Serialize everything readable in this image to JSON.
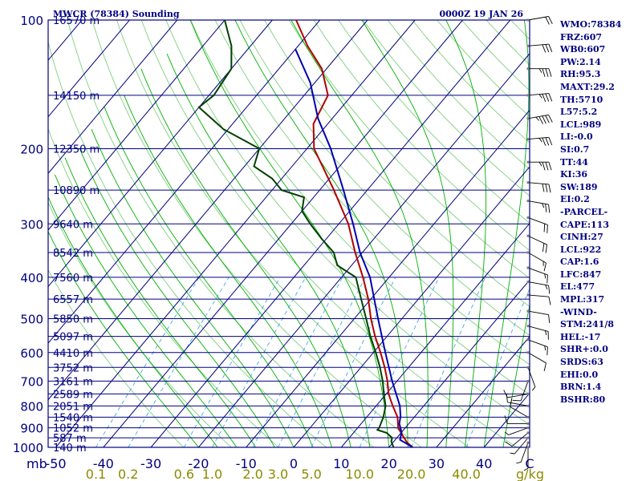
{
  "chart_data": {
    "type": "skew-t sounding",
    "title": "MWCR (78384) Sounding",
    "time_label": "0000Z 19 JAN 26",
    "pressure_axis_unit": "mb",
    "pressure_levels": [
      100,
      200,
      300,
      400,
      500,
      600,
      700,
      800,
      900,
      1000
    ],
    "temperature_ticks": [
      -50,
      -40,
      -30,
      -20,
      -10,
      0,
      10,
      20,
      30,
      40
    ],
    "temperature_extra_label": "C",
    "mixing_ratio_ticks": [
      "0.1",
      "0.2",
      "0.6",
      "1.0",
      "2.0",
      "3.0",
      "5.0",
      "10.0",
      "20.0",
      "40.0"
    ],
    "mixing_ratio_unit": "g/kg",
    "heights": [
      {
        "p": 100,
        "label": "16570 m"
      },
      {
        "p": 150,
        "label": "14150 m"
      },
      {
        "p": 200,
        "label": "12350 m"
      },
      {
        "p": 250,
        "label": "10890 m"
      },
      {
        "p": 300,
        "label": "9640 m"
      },
      {
        "p": 350,
        "label": "8542 m"
      },
      {
        "p": 400,
        "label": "7560 m"
      },
      {
        "p": 450,
        "label": "6557 m"
      },
      {
        "p": 500,
        "label": "5850 m"
      },
      {
        "p": 550,
        "label": "5097 m"
      },
      {
        "p": 600,
        "label": "4410 m"
      },
      {
        "p": 650,
        "label": "3752 m"
      },
      {
        "p": 700,
        "label": "3161 m"
      },
      {
        "p": 750,
        "label": "2589 m"
      },
      {
        "p": 800,
        "label": "2051 m"
      },
      {
        "p": 850,
        "label": "1540 m"
      },
      {
        "p": 900,
        "label": "1052 m"
      },
      {
        "p": 950,
        "label": "587 m"
      },
      {
        "p": 1000,
        "label": "140 m"
      }
    ],
    "series": [
      {
        "name": "temperature",
        "color": "#b00000",
        "points": [
          [
            1000,
            25
          ],
          [
            975,
            23
          ],
          [
            950,
            21.5
          ],
          [
            925,
            20
          ],
          [
            900,
            18.5
          ],
          [
            850,
            16.5
          ],
          [
            800,
            13.5
          ],
          [
            750,
            10.5
          ],
          [
            700,
            8
          ],
          [
            650,
            5
          ],
          [
            600,
            1.5
          ],
          [
            550,
            -2.5
          ],
          [
            500,
            -6.5
          ],
          [
            450,
            -10.5
          ],
          [
            400,
            -15.5
          ],
          [
            350,
            -21.5
          ],
          [
            300,
            -28
          ],
          [
            250,
            -37
          ],
          [
            200,
            -48.5
          ],
          [
            175,
            -53
          ],
          [
            150,
            -55
          ],
          [
            130,
            -61
          ],
          [
            115,
            -68
          ],
          [
            100,
            -75
          ]
        ]
      },
      {
        "name": "dewpoint",
        "color": "#004000",
        "points": [
          [
            1000,
            21
          ],
          [
            970,
            19.5
          ],
          [
            950,
            19
          ],
          [
            925,
            17
          ],
          [
            910,
            14.5
          ],
          [
            900,
            14.5
          ],
          [
            850,
            13.5
          ],
          [
            800,
            12
          ],
          [
            750,
            9.5
          ],
          [
            700,
            7
          ],
          [
            650,
            4
          ],
          [
            600,
            0.5
          ],
          [
            550,
            -3.5
          ],
          [
            500,
            -7.5
          ],
          [
            450,
            -12
          ],
          [
            400,
            -17
          ],
          [
            375,
            -23
          ],
          [
            350,
            -26
          ],
          [
            325,
            -31
          ],
          [
            300,
            -36
          ],
          [
            280,
            -40
          ],
          [
            260,
            -42
          ],
          [
            250,
            -48
          ],
          [
            235,
            -52
          ],
          [
            220,
            -58
          ],
          [
            200,
            -60
          ],
          [
            180,
            -71
          ],
          [
            160,
            -80
          ],
          [
            150,
            -79
          ],
          [
            130,
            -80
          ],
          [
            115,
            -84
          ],
          [
            100,
            -90
          ]
        ]
      },
      {
        "name": "parcel",
        "color": "#0000b0",
        "points": [
          [
            1000,
            25
          ],
          [
            960,
            21
          ],
          [
            922,
            20
          ],
          [
            880,
            18
          ],
          [
            847,
            17
          ],
          [
            800,
            15
          ],
          [
            700,
            9
          ],
          [
            600,
            2.5
          ],
          [
            500,
            -5
          ],
          [
            400,
            -14
          ],
          [
            350,
            -20.5
          ],
          [
            300,
            -27
          ],
          [
            250,
            -35
          ],
          [
            200,
            -45
          ],
          [
            170,
            -53
          ],
          [
            140,
            -61
          ],
          [
            117,
            -70
          ]
        ]
      }
    ],
    "indices": [
      "WMO:78384",
      "FRZ:607",
      "WB0:607",
      "PW:2.14",
      "RH:95.3",
      "MAXT:29.2",
      "TH:5710",
      "L57:5.2",
      "LCL:989",
      "LI:-0.0",
      "SI:0.7",
      "TT:44",
      "KI:36",
      "SW:189",
      "EI:0.2",
      "-PARCEL-",
      "CAPE:113",
      "CINH:27",
      "LCL:922",
      "CAP:1.6",
      "LFC:847",
      "EL:477",
      "MPL:317",
      "-WIND-",
      "STM:241/8",
      "HEL:-17",
      "SHR+:0.0",
      "SRDS:63",
      "EHI:0.0",
      "BRN:1.4",
      "BSHR:80"
    ],
    "wind_barbs": [
      {
        "p": 100,
        "dir": 80,
        "spd": 20
      },
      {
        "p": 115,
        "dir": 85,
        "spd": 30
      },
      {
        "p": 130,
        "dir": 90,
        "spd": 35
      },
      {
        "p": 150,
        "dir": 85,
        "spd": 35
      },
      {
        "p": 170,
        "dir": 80,
        "spd": 45
      },
      {
        "p": 190,
        "dir": 85,
        "spd": 35
      },
      {
        "p": 215,
        "dir": 90,
        "spd": 35
      },
      {
        "p": 240,
        "dir": 95,
        "spd": 30
      },
      {
        "p": 265,
        "dir": 100,
        "spd": 25
      },
      {
        "p": 290,
        "dir": 110,
        "spd": 20
      },
      {
        "p": 320,
        "dir": 115,
        "spd": 20
      },
      {
        "p": 350,
        "dir": 120,
        "spd": 15
      },
      {
        "p": 380,
        "dir": 110,
        "spd": 15
      },
      {
        "p": 410,
        "dir": 100,
        "spd": 15
      },
      {
        "p": 440,
        "dir": 95,
        "spd": 10
      },
      {
        "p": 480,
        "dir": 100,
        "spd": 10
      },
      {
        "p": 520,
        "dir": 105,
        "spd": 15
      },
      {
        "p": 560,
        "dir": 110,
        "spd": 15
      },
      {
        "p": 600,
        "dir": 120,
        "spd": 10
      },
      {
        "p": 650,
        "dir": 160,
        "spd": 5
      },
      {
        "p": 700,
        "dir": 200,
        "spd": 10
      },
      {
        "p": 750,
        "dir": 260,
        "spd": 10
      },
      {
        "p": 800,
        "dir": 280,
        "spd": 10
      },
      {
        "p": 850,
        "dir": 300,
        "spd": 10
      },
      {
        "p": 880,
        "dir": 270,
        "spd": 10
      },
      {
        "p": 900,
        "dir": 250,
        "spd": 5
      },
      {
        "p": 925,
        "dir": 230,
        "spd": 10
      },
      {
        "p": 950,
        "dir": 220,
        "spd": 5
      },
      {
        "p": 975,
        "dir": 200,
        "spd": 5
      },
      {
        "p": 1000,
        "dir": 180,
        "spd": 5
      }
    ],
    "colors": {
      "frame": "#000080",
      "isobar": "#000080",
      "isotherm": "#000080",
      "dry_adiabat": "#7fcf7f",
      "moist_adiabat": "#00b000",
      "mixing_ratio": "#2f9fdf",
      "wind": "#000000",
      "wind_marker": "#7f7f7f"
    }
  }
}
